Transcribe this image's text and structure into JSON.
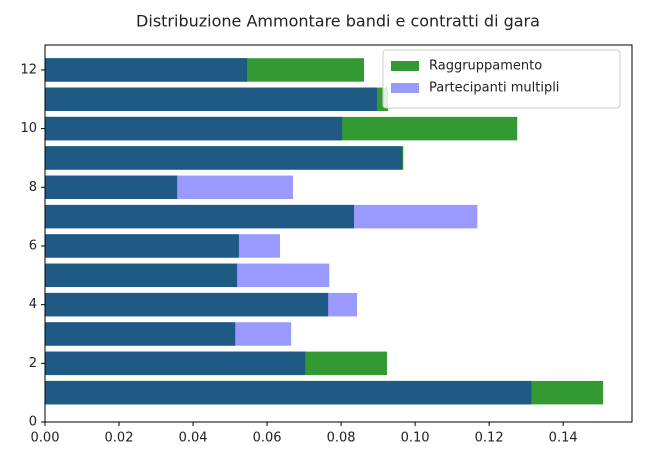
{
  "chart_data": {
    "type": "barh-overlap",
    "title": "Distribuzione Ammontare bandi e contratti di gara",
    "y": [
      1,
      2,
      3,
      4,
      5,
      6,
      7,
      8,
      9,
      10,
      11,
      12
    ],
    "series": [
      {
        "name": "Raggruppamento",
        "color": "#339933",
        "values": [
          0.1508,
          0.0924,
          null,
          null,
          null,
          null,
          null,
          null,
          0.0968,
          0.1276,
          0.0927,
          0.0862
        ]
      },
      {
        "name": "Partecipanti multipli",
        "color": "#9999ff",
        "values": [
          null,
          null,
          0.0665,
          0.0843,
          0.0768,
          0.0635,
          0.1168,
          0.067,
          null,
          null,
          null,
          null
        ]
      },
      {
        "color": "#1f5a85",
        "values": [
          0.1314,
          0.0703,
          0.0514,
          0.0765,
          0.0519,
          0.0524,
          0.0835,
          0.0357,
          0.0965,
          0.0803,
          0.0897,
          0.0546
        ]
      }
    ],
    "bar_height": 0.8,
    "xlim": [
      0,
      0.1586
    ],
    "ylim": [
      0,
      12.85
    ],
    "xticks": [
      {
        "value": 0,
        "label": "0.00"
      },
      {
        "value": 0.02,
        "label": "0.02"
      },
      {
        "value": 0.04,
        "label": "0.04"
      },
      {
        "value": 0.06,
        "label": "0.06"
      },
      {
        "value": 0.08,
        "label": "0.08"
      },
      {
        "value": 0.1,
        "label": "0.10"
      },
      {
        "value": 0.12,
        "label": "0.12"
      },
      {
        "value": 0.14,
        "label": "0.14"
      }
    ],
    "yticks": [
      0,
      2,
      4,
      6,
      8,
      10,
      12
    ],
    "legend": "upper right"
  }
}
